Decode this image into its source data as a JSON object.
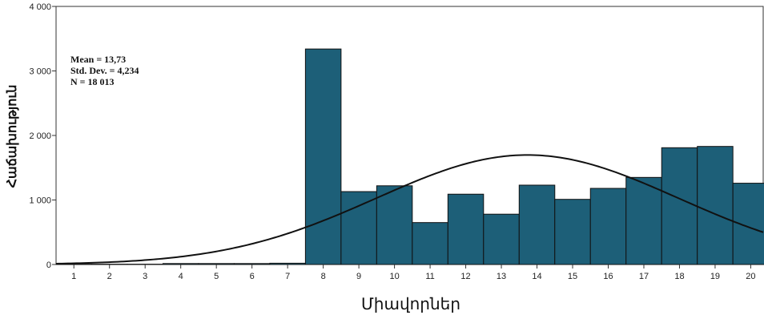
{
  "chart_data": {
    "type": "bar",
    "xlabel": "Միավորներ",
    "ylabel": "Հաճախություն",
    "categories": [
      "1",
      "2",
      "3",
      "4",
      "5",
      "6",
      "7",
      "8",
      "9",
      "10",
      "11",
      "12",
      "13",
      "14",
      "15",
      "16",
      "17",
      "18",
      "19",
      "20"
    ],
    "values": [
      5,
      5,
      5,
      15,
      15,
      15,
      20,
      3340,
      1130,
      1220,
      650,
      1090,
      780,
      1230,
      1010,
      1180,
      1350,
      1810,
      1830,
      1260
    ],
    "ylim": [
      0,
      4000
    ],
    "yticks": [
      0,
      1000,
      2000,
      3000,
      4000
    ],
    "ytick_labels": [
      "0",
      "1 000",
      "2 000",
      "3 000",
      "4 000"
    ],
    "bar_color": "#1d5f78",
    "normal_curve": {
      "mean": 13.73,
      "std": 4.234,
      "n": 18013,
      "bin_width": 1
    },
    "stats": [
      "Mean = 13,73",
      "Std. Dev. = 4,234",
      "N = 18 013"
    ],
    "grid": false
  }
}
